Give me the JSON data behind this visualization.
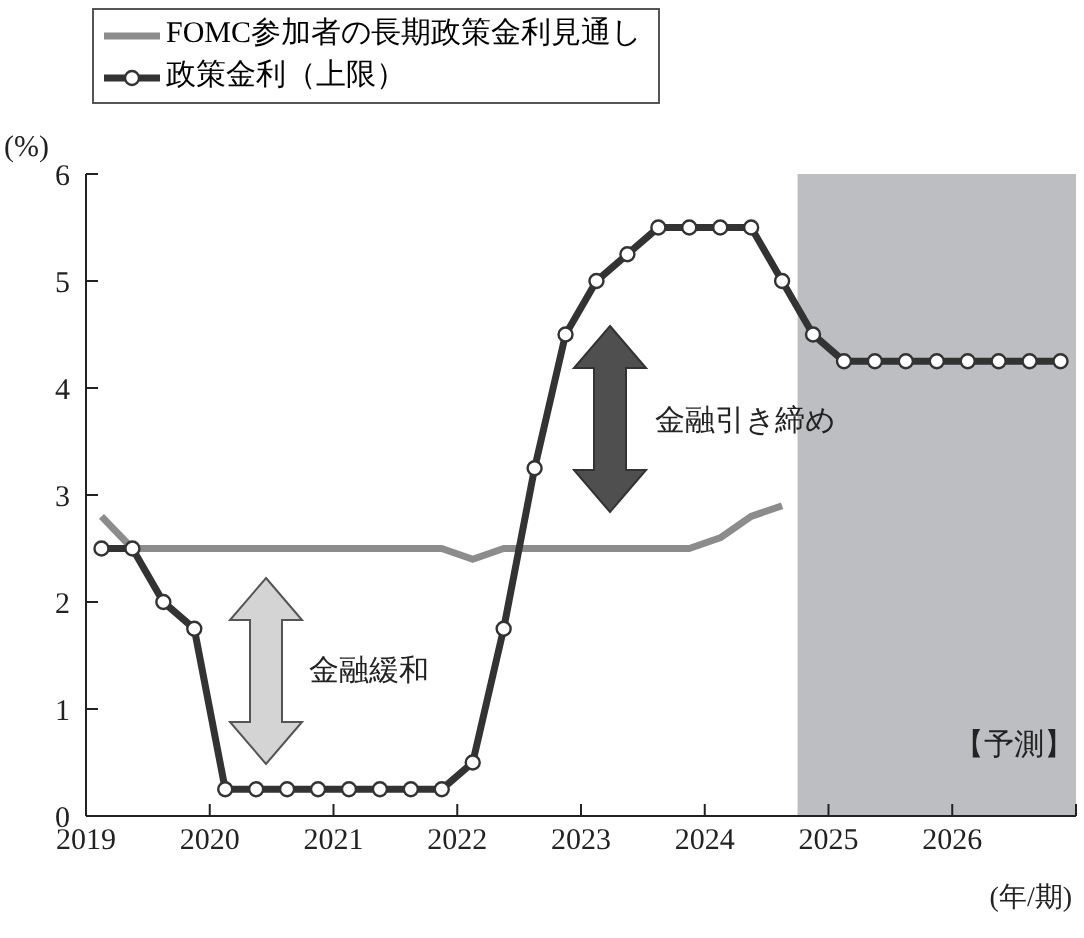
{
  "chart_data": {
    "type": "line",
    "ylabel": "(%)",
    "xlabel": "(年/期)",
    "xlim": [
      2019,
      2027
    ],
    "xticks": [
      2019,
      2020,
      2021,
      2022,
      2023,
      2024,
      2025,
      2026,
      {
        "value": 2027,
        "label": null
      }
    ],
    "ylim": [
      0,
      6
    ],
    "yticks": [
      0,
      1,
      2,
      3,
      4,
      5,
      6
    ],
    "legend": "top left",
    "series": [
      {
        "name": "FOMC参加者の長期政策金利見通し",
        "color": "#8c8c8c",
        "marker": "none",
        "x": [
          2019.125,
          2019.375,
          2019.625,
          2019.875,
          2020.125,
          2020.375,
          2020.625,
          2020.875,
          2021.125,
          2021.375,
          2021.625,
          2021.875,
          2022.125,
          2022.375,
          2022.625,
          2022.875,
          2023.125,
          2023.375,
          2023.625,
          2023.875,
          2024.125,
          2024.375,
          2024.625
        ],
        "values": [
          2.8,
          2.5,
          2.5,
          2.5,
          2.5,
          2.5,
          2.5,
          2.5,
          2.5,
          2.5,
          2.5,
          2.5,
          2.4,
          2.5,
          2.5,
          2.5,
          2.5,
          2.5,
          2.5,
          2.5,
          2.6,
          2.8,
          2.9
        ]
      },
      {
        "name": "政策金利（上限）",
        "color": "#333333",
        "marker": "circle",
        "x": [
          2019.125,
          2019.375,
          2019.625,
          2019.875,
          2020.125,
          2020.375,
          2020.625,
          2020.875,
          2021.125,
          2021.375,
          2021.625,
          2021.875,
          2022.125,
          2022.375,
          2022.625,
          2022.875,
          2023.125,
          2023.375,
          2023.625,
          2023.875,
          2024.125,
          2024.375,
          2024.625,
          2024.875,
          2025.125,
          2025.375,
          2025.625,
          2025.875,
          2026.125,
          2026.375,
          2026.625,
          2026.875
        ],
        "values": [
          2.5,
          2.5,
          2.0,
          1.75,
          0.25,
          0.25,
          0.25,
          0.25,
          0.25,
          0.25,
          0.25,
          0.25,
          0.5,
          1.75,
          3.25,
          4.5,
          5.0,
          5.25,
          5.5,
          5.5,
          5.5,
          5.5,
          5.0,
          4.5,
          4.25,
          4.25,
          4.25,
          4.25,
          4.25,
          4.25,
          4.25,
          4.25
        ]
      }
    ],
    "bands": [
      {
        "axis": "x",
        "from": 2024.75,
        "to": 2027,
        "color": "#bdbec2"
      }
    ],
    "annotations": [
      "金融緩和",
      "金融引き締め",
      "【予測】"
    ]
  }
}
